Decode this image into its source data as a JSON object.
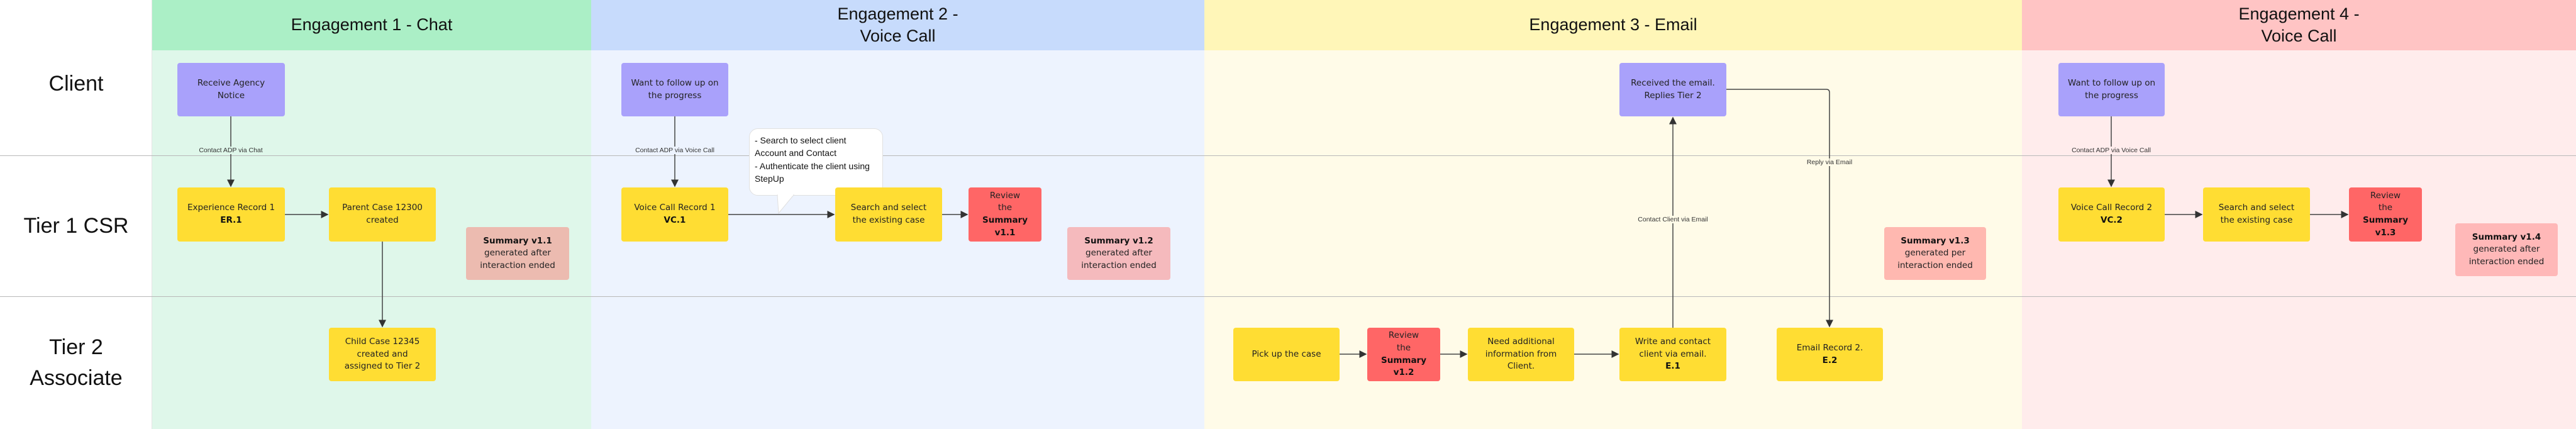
{
  "lanes": [
    "Client",
    "Tier 1 CSR",
    "Tier 2 Associate"
  ],
  "columns": [
    {
      "title": "Engagement 1 - Chat",
      "header_color": "#abefc6",
      "body_color": "#dff7ea"
    },
    {
      "title": "Engagement 2 -\nVoice Call",
      "header_color": "#c7dbfc",
      "body_color": "#edf3fe"
    },
    {
      "title": "Engagement 3 - Email",
      "header_color": "#fff6b8",
      "body_color": "#fffbe8"
    },
    {
      "title": "Engagement 4 -\nVoice Call",
      "header_color": "#ffc4c4",
      "body_color": "#ffecec"
    }
  ],
  "engagement1": {
    "receive_notice": "Receive Agency Notice",
    "edge_contact": "Contact ADP via Chat",
    "experience_record": {
      "text": "Experience Record 1",
      "bold": "ER.1"
    },
    "parent_case": "Parent Case 12300 created",
    "child_case": "Child Case 12345 created and assigned to Tier 2",
    "summary": {
      "bold": "Summary v1.1",
      "text": "generated after interaction ended"
    }
  },
  "engagement2": {
    "follow_up": "Want to follow up on the progress",
    "edge_contact": "Contact ADP via Voice Call",
    "voice_record": {
      "text": "Voice Call Record 1",
      "bold": "VC.1"
    },
    "callout_line1": "- Search to select client Account and Contact",
    "callout_line2": "- Authenticate the client using StepUp",
    "search_case": "Search and select the existing case",
    "review": {
      "text": "Review the",
      "bold": "Summary v1.1"
    },
    "summary": {
      "bold": "Summary v1.2",
      "text": "generated after interaction ended"
    }
  },
  "engagement3": {
    "received_email": "Received the email. Replies Tier 2",
    "edge_reply": "Reply via Email",
    "edge_contact": "Contact Client via Email",
    "pick_up": "Pick up the case",
    "review": {
      "text": "Review the",
      "bold": "Summary v1.2"
    },
    "need_info": "Need additional information from Client.",
    "write_contact": {
      "text": "Write and contact client via email.",
      "bold": "E.1"
    },
    "email_record": {
      "text": "Email Record 2.",
      "bold": "E.2"
    },
    "summary": {
      "bold": "Summary v1.3",
      "text": "generated per interaction ended"
    }
  },
  "engagement4": {
    "follow_up": "Want to follow up on the progress",
    "edge_contact": "Contact ADP via Voice Call",
    "voice_record": {
      "text": "Voice Call Record 2",
      "bold": "VC.2"
    },
    "search_case": "Search and select the existing case",
    "review": {
      "text": "Review the",
      "bold": "Summary v1.3"
    },
    "summary": {
      "bold": "Summary v1.4",
      "text": "generated after interaction ended"
    }
  },
  "colors": {
    "client_box": "#a9a1fb",
    "action_box": "#ffdd33",
    "review_box": "#ff6666"
  }
}
